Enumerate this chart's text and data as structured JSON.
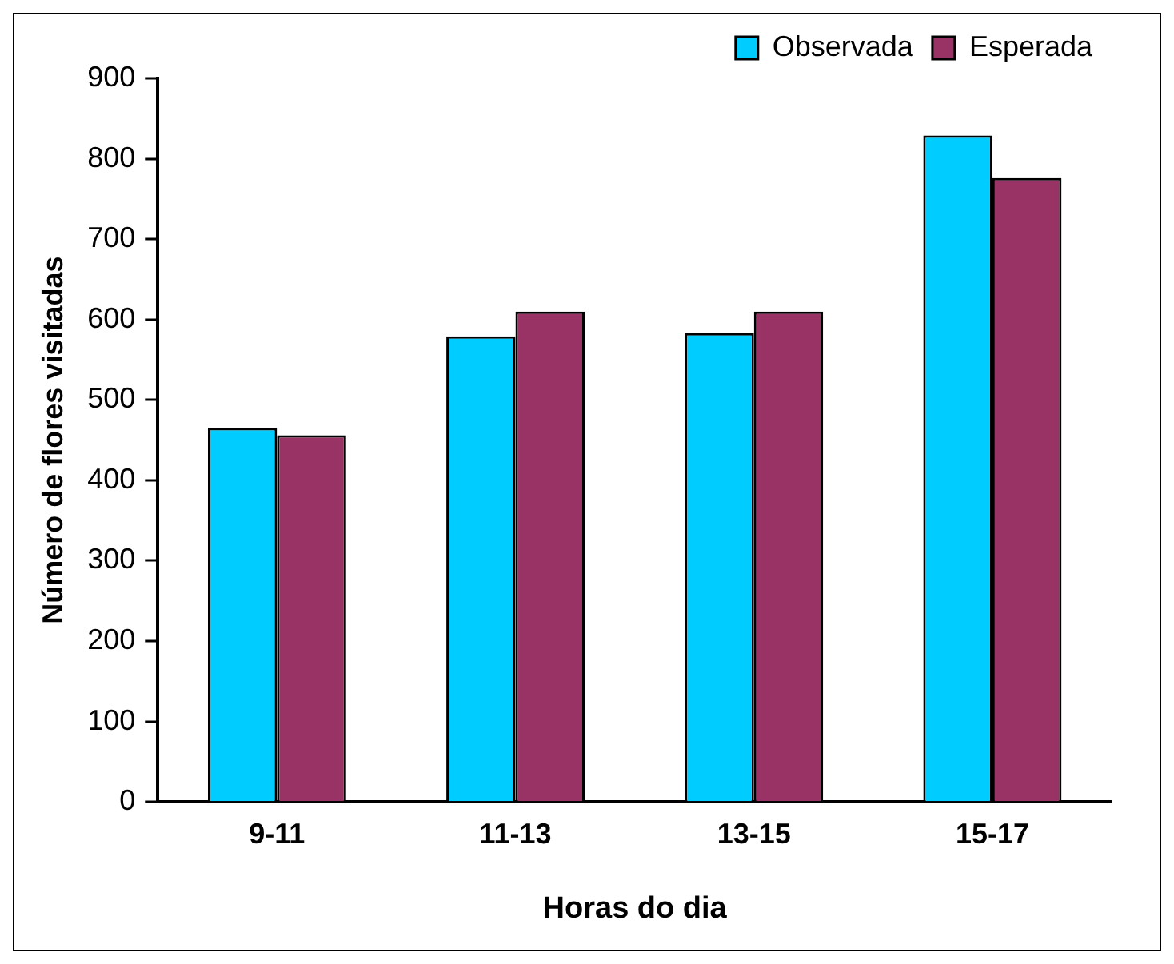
{
  "chart_data": {
    "type": "bar",
    "xlabel": "Horas do dia",
    "ylabel": "Número de flores visitadas",
    "categories": [
      "9-11",
      "11-13",
      "13-15",
      "15-17"
    ],
    "series": [
      {
        "name": "Observada",
        "color": "#00ccff",
        "values": [
          465,
          579,
          583,
          829
        ]
      },
      {
        "name": "Esperada",
        "color": "#993366",
        "values": [
          456,
          610,
          610,
          776
        ]
      }
    ],
    "ylim": [
      0,
      900
    ],
    "yticks": [
      0,
      100,
      200,
      300,
      400,
      500,
      600,
      700,
      800,
      900
    ],
    "grid": false,
    "legend": "top right"
  }
}
